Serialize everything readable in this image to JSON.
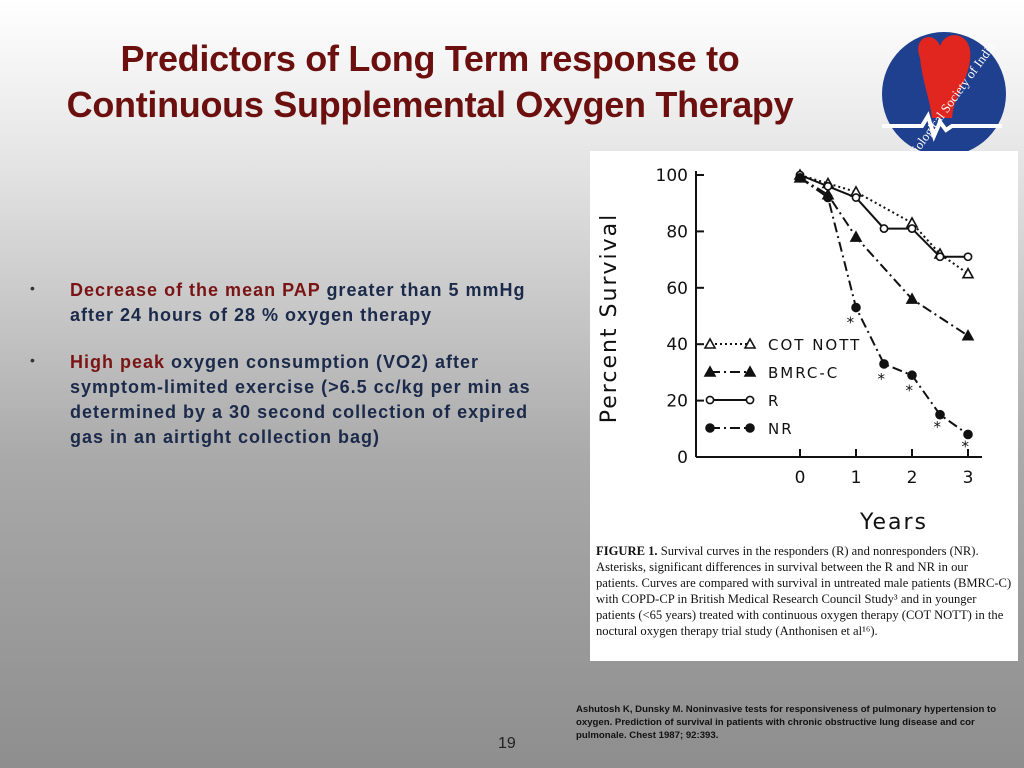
{
  "slide": {
    "title_line1": "Predictors of Long Term response to",
    "title_line2": "Continuous Supplemental Oxygen Therapy",
    "logo_text": "Cardiological Society of India",
    "bullets": [
      {
        "marker": "•",
        "red_text": "Decrease of the mean PAP",
        "rest_text": " greater than 5 mmHg after 24 hours of 28 % oxygen therapy"
      },
      {
        "marker": "•",
        "red_text": "High peak",
        "rest_text": " oxygen consumption (VO2) after symptom-limited exercise (>6.5 cc/kg per min as determined by a 30 second collection of expired gas in an airtight collection bag)"
      }
    ],
    "reference": "Ashutosh K, Dunsky M. Noninvasive tests for responsiveness of pulmonary hypertension to oxygen. Prediction of survival in patients with chronic obstructive lung disease and cor pulmonale. Chest 1987; 92:393.",
    "page_number": "19"
  },
  "figure": {
    "caption_label": "FIGURE 1.",
    "caption_text": " Survival curves in the responders (R) and nonresponders (NR). Asterisks, significant differences in survival between the R and NR in our patients. Curves are compared with survival in untreated male patients (BMRC-C) with COPD-CP in British Medical Research Council Study³ and in younger patients (<65 years) treated with continuous oxygen therapy (COT NOTT) in the noctural oxygen therapy trial study (Anthonisen et al¹⁶)."
  },
  "colors": {
    "title": "#6b0f0f",
    "bullet_text": "#1b2a4a",
    "bullet_red": "#7a1414",
    "logo_blue": "#1f3f8f",
    "logo_red": "#e0261f"
  },
  "chart_data": {
    "type": "line",
    "xlabel": "Years",
    "ylabel": "Percent Survival",
    "xlim": [
      0,
      3
    ],
    "ylim": [
      0,
      100
    ],
    "xticks": [
      0,
      1,
      2,
      3
    ],
    "yticks": [
      0,
      20,
      40,
      60,
      80,
      100
    ],
    "grid": false,
    "legend_position": "left-middle",
    "series": [
      {
        "name": "COT NOTT",
        "line": "dotted",
        "marker": "open-triangle",
        "x": [
          0,
          0.5,
          1,
          2,
          2.5,
          3
        ],
        "y": [
          100,
          97,
          94,
          83,
          72,
          65
        ]
      },
      {
        "name": "BMRC-C",
        "line": "dash-dot",
        "marker": "filled-triangle",
        "x": [
          0,
          0.5,
          1,
          2,
          3
        ],
        "y": [
          99,
          93,
          78,
          56,
          43
        ]
      },
      {
        "name": "R",
        "line": "solid",
        "marker": "open-circle",
        "x": [
          0,
          0.5,
          1,
          1.5,
          2,
          2.5,
          3
        ],
        "y": [
          100,
          96,
          92,
          81,
          81,
          71,
          71
        ]
      },
      {
        "name": "NR",
        "line": "dash-dot",
        "marker": "filled-circle",
        "x": [
          0,
          0.5,
          1,
          1.5,
          2,
          2.5,
          3
        ],
        "y": [
          99,
          92,
          53,
          33,
          29,
          15,
          8
        ]
      }
    ],
    "annotations": [
      {
        "text": "*",
        "x": 0.9,
        "y": 48
      },
      {
        "text": "*",
        "x": 1.45,
        "y": 28
      },
      {
        "text": "*",
        "x": 1.95,
        "y": 24
      },
      {
        "text": "*",
        "x": 2.45,
        "y": 11
      },
      {
        "text": "*",
        "x": 2.95,
        "y": 4
      }
    ]
  }
}
